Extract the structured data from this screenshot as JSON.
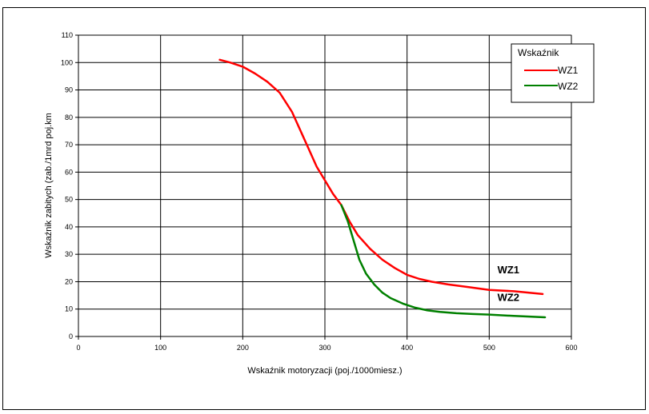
{
  "chart_data": {
    "type": "line",
    "xlabel": "Wskaźnik motoryzacji (poj./1000miesz.)",
    "ylabel": "Wskaźnik zabitych (zab./1mrd poj.km",
    "xlim": [
      0,
      600
    ],
    "ylim": [
      0,
      110
    ],
    "x_ticks": [
      "0",
      "100",
      "200",
      "300",
      "400",
      "500",
      "600"
    ],
    "y_ticks": [
      "0",
      "10",
      "20",
      "30",
      "40",
      "50",
      "60",
      "70",
      "80",
      "90",
      "100",
      "110"
    ],
    "grid": true,
    "legend": {
      "title": "Wskaźnik",
      "placement": "top-right"
    },
    "series": [
      {
        "name": "WZ1",
        "color": "#ff0000",
        "points": [
          [
            172,
            101
          ],
          [
            185,
            100
          ],
          [
            200,
            98.5
          ],
          [
            215,
            96
          ],
          [
            230,
            93
          ],
          [
            245,
            89
          ],
          [
            260,
            82
          ],
          [
            275,
            72
          ],
          [
            290,
            62
          ],
          [
            300,
            57
          ],
          [
            310,
            52
          ],
          [
            320,
            48
          ],
          [
            330,
            42
          ],
          [
            340,
            37
          ],
          [
            355,
            32
          ],
          [
            370,
            28
          ],
          [
            385,
            25
          ],
          [
            400,
            22.5
          ],
          [
            415,
            21
          ],
          [
            430,
            20
          ],
          [
            450,
            19
          ],
          [
            475,
            18
          ],
          [
            500,
            17
          ],
          [
            530,
            16.5
          ],
          [
            565,
            15.5
          ]
        ]
      },
      {
        "name": "WZ2",
        "color": "#008000",
        "points": [
          [
            320,
            48
          ],
          [
            328,
            42
          ],
          [
            335,
            35
          ],
          [
            342,
            28
          ],
          [
            350,
            23
          ],
          [
            360,
            19
          ],
          [
            370,
            16
          ],
          [
            380,
            14
          ],
          [
            395,
            12
          ],
          [
            410,
            10.5
          ],
          [
            425,
            9.5
          ],
          [
            440,
            9
          ],
          [
            460,
            8.5
          ],
          [
            480,
            8.2
          ],
          [
            500,
            8
          ],
          [
            530,
            7.5
          ],
          [
            568,
            7
          ]
        ]
      }
    ],
    "annotations": [
      {
        "text": "WZ1",
        "x": 510,
        "y": 23
      },
      {
        "text": "WZ2",
        "x": 510,
        "y": 13
      }
    ]
  }
}
